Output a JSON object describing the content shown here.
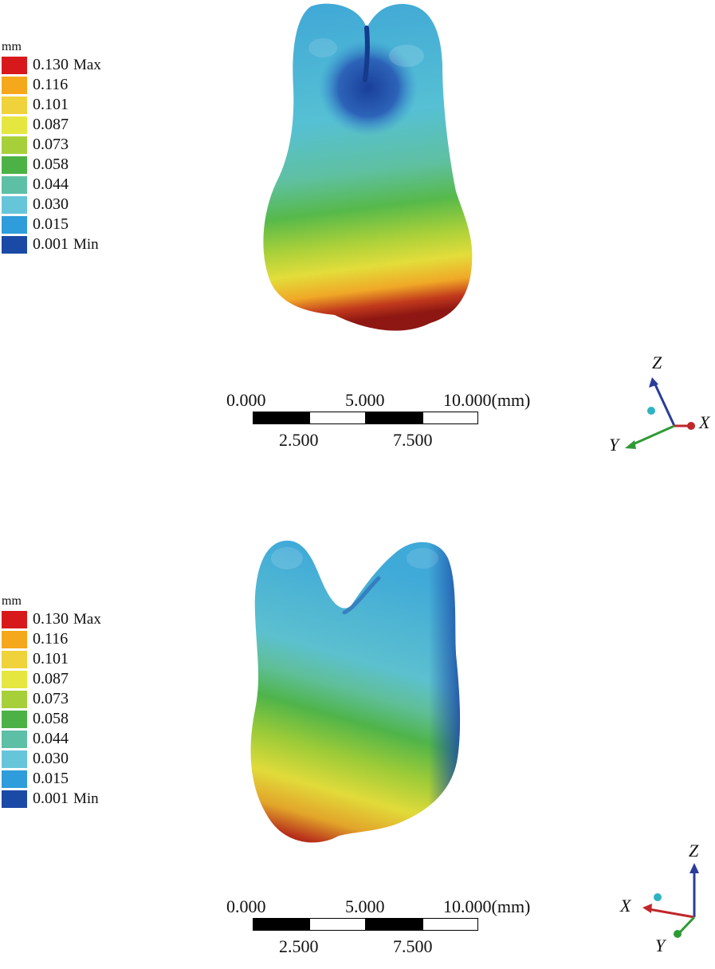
{
  "legend": {
    "unit": "mm",
    "levels": [
      {
        "value": "0.130",
        "tag": "Max",
        "color": "#d8191c"
      },
      {
        "value": "0.116",
        "tag": "",
        "color": "#f5a81b"
      },
      {
        "value": "0.101",
        "tag": "",
        "color": "#f0d23a"
      },
      {
        "value": "0.087",
        "tag": "",
        "color": "#e6e640"
      },
      {
        "value": "0.073",
        "tag": "",
        "color": "#a7cf3a"
      },
      {
        "value": "0.058",
        "tag": "",
        "color": "#4cb246"
      },
      {
        "value": "0.044",
        "tag": "",
        "color": "#5dbfa6"
      },
      {
        "value": "0.030",
        "tag": "",
        "color": "#67c5da"
      },
      {
        "value": "0.015",
        "tag": "",
        "color": "#2f9ddb"
      },
      {
        "value": "0.001",
        "tag": "Min",
        "color": "#1b49a6"
      }
    ]
  },
  "scalebar": {
    "top_labels": [
      "0.000",
      "5.000",
      "10.000(mm)"
    ],
    "bottom_labels": [
      "2.500",
      "7.500"
    ]
  },
  "axes": {
    "x": "X",
    "y": "Y",
    "z": "Z",
    "colors": {
      "x": "#c0262a",
      "y": "#2f9a35",
      "z": "#2a3d99",
      "dot": "#2fb3c1"
    }
  }
}
